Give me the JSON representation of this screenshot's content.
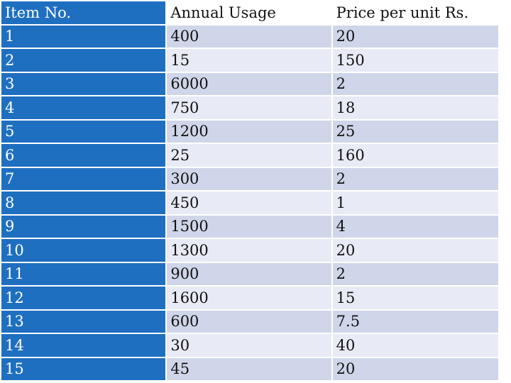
{
  "table": {
    "headers": [
      "Item No.",
      "Annual Usage",
      "Price per unit Rs."
    ],
    "rows": [
      [
        "1",
        "400",
        "20"
      ],
      [
        "2",
        "15",
        "150"
      ],
      [
        "3",
        "6000",
        "2"
      ],
      [
        "4",
        "750",
        "18"
      ],
      [
        "5",
        "1200",
        "25"
      ],
      [
        "6",
        "25",
        "160"
      ],
      [
        "7",
        "300",
        "2"
      ],
      [
        "8",
        "450",
        "1"
      ],
      [
        "9",
        "1500",
        "4"
      ],
      [
        "10",
        "1300",
        "20"
      ],
      [
        "11",
        "900",
        "2"
      ],
      [
        "12",
        "1600",
        "15"
      ],
      [
        "13",
        "600",
        "7.5"
      ],
      [
        "14",
        "30",
        "40"
      ],
      [
        "15",
        "45",
        "20"
      ]
    ]
  },
  "colors": {
    "first_column": "#1f6fc0",
    "row_dark": "#cfd6e9",
    "row_light": "#e8ebf5"
  }
}
